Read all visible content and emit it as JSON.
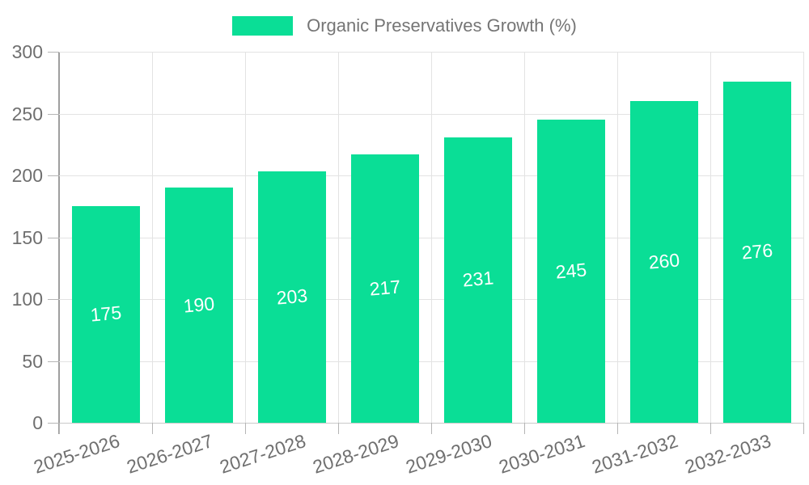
{
  "legend": {
    "label": "Organic Preservatives Growth (%)",
    "swatch_color": "#0ade96"
  },
  "chart_data": {
    "type": "bar",
    "title": "Organic Preservatives Growth (%)",
    "categories": [
      "2025-2026",
      "2026-2027",
      "2027-2028",
      "2028-2029",
      "2029-2030",
      "2030-2031",
      "2031-2032",
      "2032-2033"
    ],
    "values": [
      175,
      190,
      203,
      217,
      231,
      245,
      260,
      276
    ],
    "series": [
      {
        "name": "Organic Preservatives Growth (%)",
        "values": [
          175,
          190,
          203,
          217,
          231,
          245,
          260,
          276
        ]
      }
    ],
    "xlabel": "",
    "ylabel": "",
    "ylim": [
      0,
      300
    ],
    "yticks": [
      0,
      50,
      100,
      150,
      200,
      250,
      300
    ],
    "grid": true,
    "legend_position": "top",
    "bar_color": "#0ade96",
    "value_label_color": "#ffffff",
    "axis_text_color": "#6f6f6f",
    "gridline_color": "#e3e3e3",
    "axis_line_color": "#9e9e9e"
  }
}
